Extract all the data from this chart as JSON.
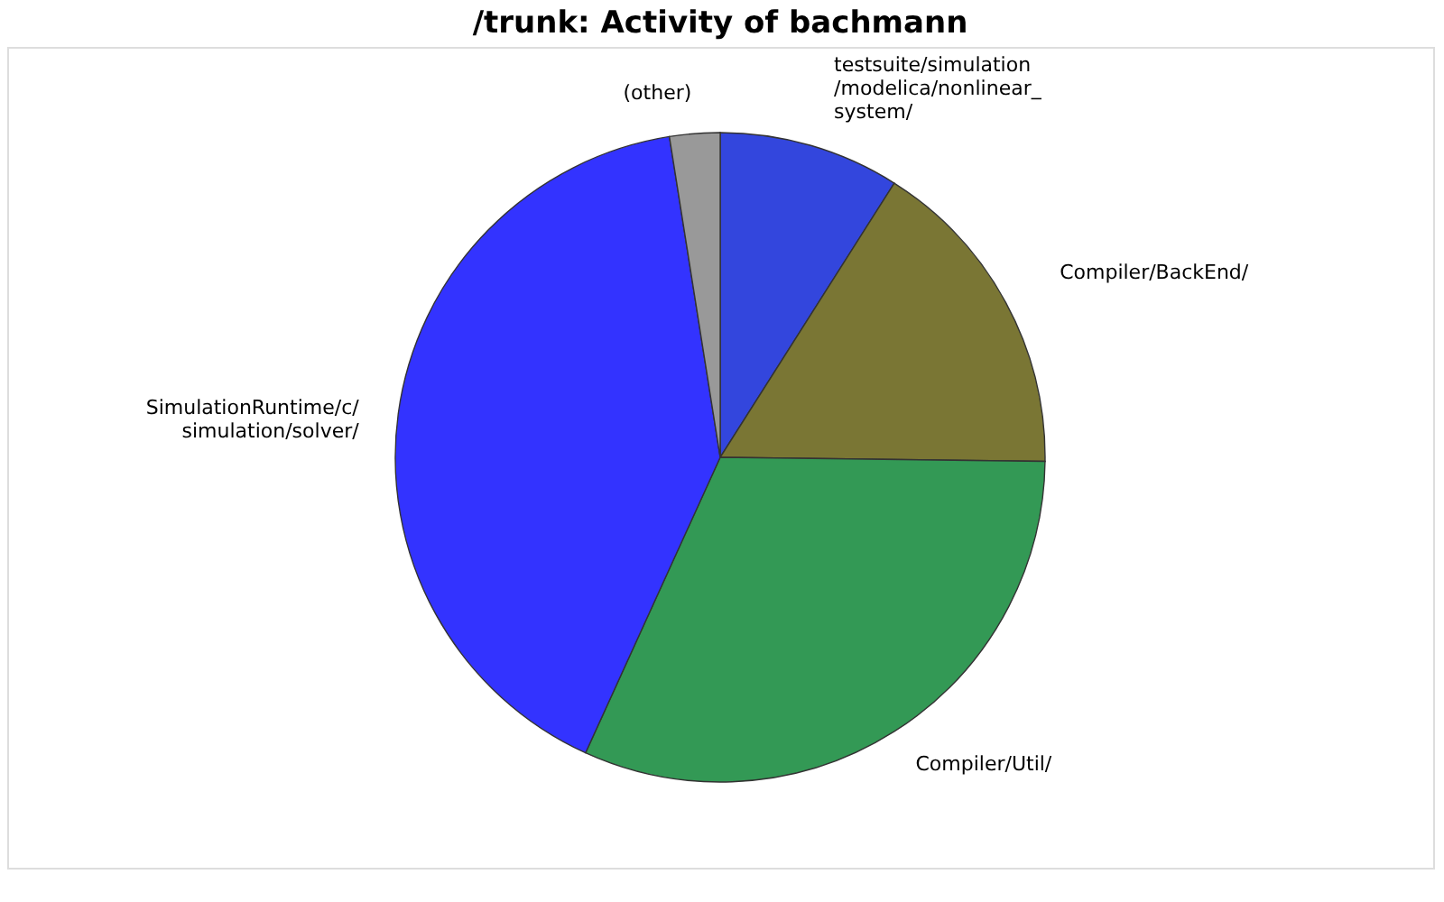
{
  "chart_data": {
    "type": "pie",
    "title": "/trunk: Activity of bachmann",
    "categories": [
      "testsuite/simulation/modelica/nonlinear_system/",
      "Compiler/BackEnd/",
      "Compiler/Util/",
      "SimulationRuntime/c/simulation/solver/",
      "(other)"
    ],
    "values": [
      9,
      16.2,
      31.6,
      40.7,
      2.5
    ],
    "colors": [
      "#3346dd",
      "#7a7634",
      "#339955",
      "#3333ff",
      "#999999"
    ],
    "legend": false
  }
}
